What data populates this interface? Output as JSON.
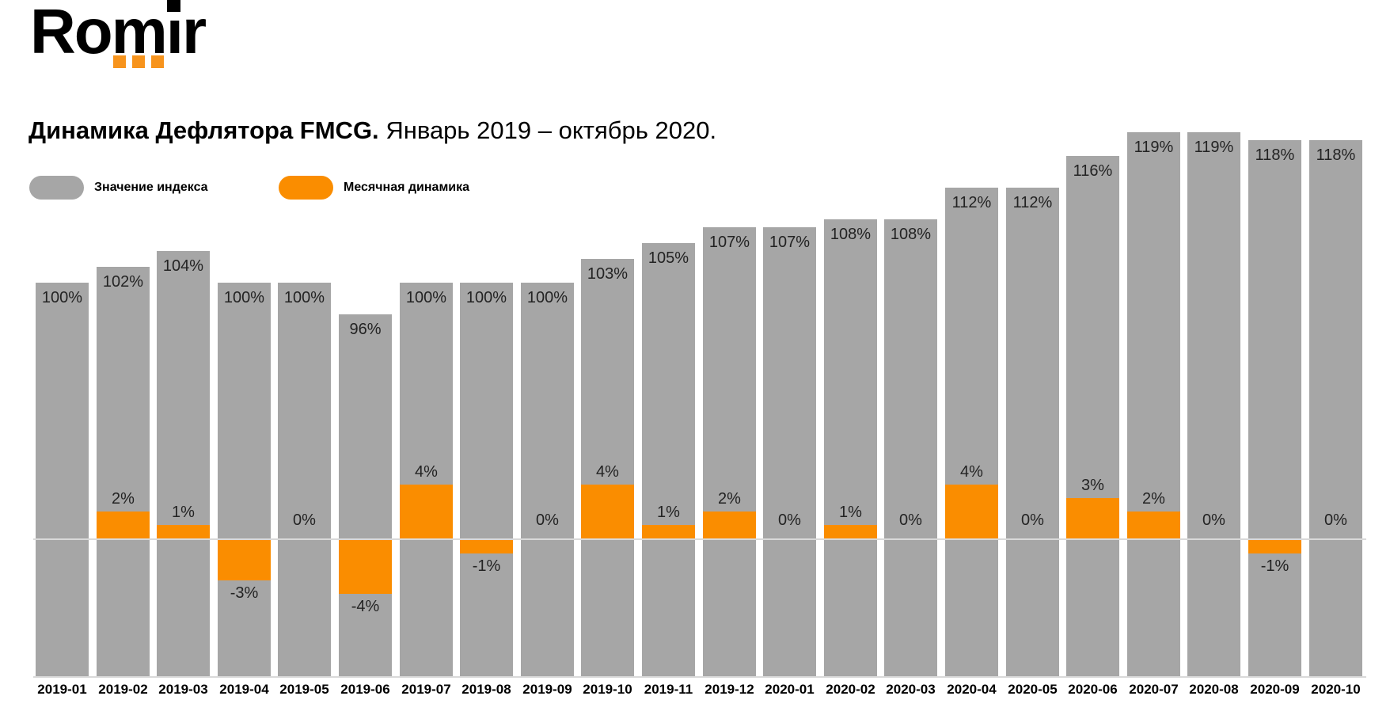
{
  "logo": {
    "part_before_i": "Rom",
    "letter_i": "i",
    "part_after_i": "r"
  },
  "header": {
    "title_bold": "Динамика Дефлятора FMCG.",
    "title_period": "Январь 2019 – октябрь 2020."
  },
  "legend": {
    "index_label": "Значение индекса",
    "monthly_label": "Месячная динамика"
  },
  "colors": {
    "index_bar": "#A6A6A6",
    "monthly_bar": "#FA8D00",
    "logo_orange": "#F7941D",
    "axis_line": "#D9D9D9",
    "label_text": "#232323"
  },
  "chart_data": {
    "type": "bar",
    "title": "Динамика Дефлятора FMCG.",
    "subtitle": "Январь 2019 – октябрь 2020.",
    "legend_position": "top-left",
    "grid": false,
    "unit": "%",
    "categories": [
      "2019-01",
      "2019-02",
      "2019-03",
      "2019-04",
      "2019-05",
      "2019-06",
      "2019-07",
      "2019-08",
      "2019-09",
      "2019-10",
      "2019-11",
      "2019-12",
      "2020-01",
      "2020-02",
      "2020-03",
      "2020-04",
      "2020-05",
      "2020-06",
      "2020-07",
      "2020-08",
      "2020-09",
      "2020-10"
    ],
    "series": [
      {
        "name": "Значение индекса",
        "color": "#A6A6A6",
        "values": [
          100,
          102,
          104,
          100,
          100,
          96,
          100,
          100,
          100,
          103,
          105,
          107,
          107,
          108,
          108,
          112,
          112,
          116,
          119,
          119,
          118,
          118
        ],
        "labels": [
          "100%",
          "102%",
          "104%",
          "100%",
          "100%",
          "96%",
          "100%",
          "100%",
          "100%",
          "103%",
          "105%",
          "107%",
          "107%",
          "108%",
          "108%",
          "112%",
          "112%",
          "116%",
          "119%",
          "119%",
          "118%",
          "118%"
        ]
      },
      {
        "name": "Месячная динамика",
        "color": "#FA8D00",
        "values": [
          null,
          2,
          1,
          -3,
          0,
          -4,
          4,
          -1,
          0,
          4,
          1,
          2,
          0,
          1,
          0,
          4,
          0,
          3,
          2,
          0,
          -1,
          0
        ],
        "labels": [
          "",
          "2%",
          "1%",
          "-3%",
          "0%",
          "-4%",
          "4%",
          "-1%",
          "0%",
          "4%",
          "1%",
          "2%",
          "0%",
          "1%",
          "0%",
          "4%",
          "0%",
          "3%",
          "2%",
          "0%",
          "-1%",
          "0%"
        ]
      }
    ],
    "value_axis": {
      "visible": false,
      "monthly_zero_baseline": true
    }
  }
}
